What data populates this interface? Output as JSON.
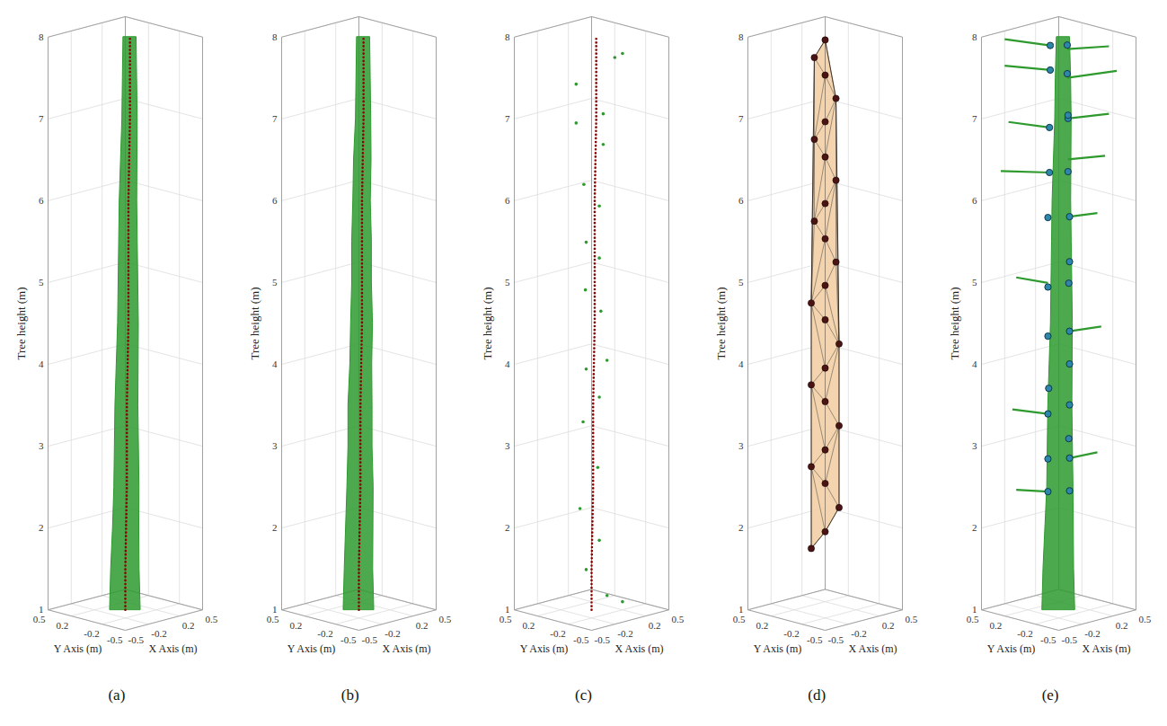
{
  "chart_data": [
    {
      "type": "scatter3d",
      "title": "(a)",
      "xlabel": "X Axis (m)",
      "ylabel": "Y Axis (m)",
      "zlabel": "Tree height (m)",
      "xlim": [
        -0.5,
        0.5
      ],
      "ylim": [
        -0.5,
        0.5
      ],
      "zlim": [
        1,
        8
      ],
      "xticks": [
        -0.5,
        -0.2,
        0.2,
        0.5
      ],
      "yticks": [
        -0.5,
        -0.2,
        0.2,
        0.5
      ],
      "zticks": [
        1,
        2,
        3,
        4,
        5,
        6,
        7,
        8
      ],
      "grid": true,
      "series": [
        {
          "type": "area",
          "color": "#2e9a2e",
          "x": [
            0,
            0,
            0.01,
            0.01,
            0.01,
            0.01,
            0.02,
            0.02,
            0.02,
            0.02,
            0.02,
            0.03,
            0.03,
            0.03,
            0.03
          ],
          "y": [
            0,
            0,
            0,
            -0.01,
            -0.01,
            -0.01,
            -0.01,
            -0.02,
            -0.02,
            -0.02,
            -0.02,
            -0.02,
            -0.03,
            -0.03,
            -0.03
          ],
          "z": [
            1,
            1.5,
            2,
            2.5,
            3,
            3.5,
            4,
            4.5,
            5,
            5.5,
            6,
            6.5,
            7,
            7.5,
            8
          ],
          "radius": [
            0.14,
            0.13,
            0.12,
            0.115,
            0.11,
            0.105,
            0.1,
            0.095,
            0.09,
            0.085,
            0.08,
            0.075,
            0.07,
            0.065,
            0.06
          ]
        },
        {
          "type": "line",
          "line_style": "dotted",
          "color": "#8b0000",
          "x": [
            0,
            0,
            0.01,
            0.01,
            0.01,
            0.01,
            0.02,
            0.02,
            0.02,
            0.02,
            0.02,
            0.03,
            0.03,
            0.03,
            0.03
          ],
          "y": [
            0,
            0,
            0,
            -0.01,
            -0.01,
            -0.01,
            -0.01,
            -0.02,
            -0.02,
            -0.02,
            -0.02,
            -0.02,
            -0.03,
            -0.03,
            -0.03
          ],
          "z": [
            1,
            1.5,
            2,
            2.5,
            3,
            3.5,
            4,
            4.5,
            5,
            5.5,
            6,
            6.5,
            7,
            7.5,
            8
          ]
        }
      ]
    },
    {
      "type": "scatter3d",
      "title": "(b)",
      "xlabel": "X Axis (m)",
      "ylabel": "Y Axis (m)",
      "zlabel": "Tree height (m)",
      "xlim": [
        -0.5,
        0.5
      ],
      "ylim": [
        -0.5,
        0.5
      ],
      "zlim": [
        1,
        8
      ],
      "xticks": [
        -0.5,
        -0.2,
        0.2,
        0.5
      ],
      "yticks": [
        -0.5,
        -0.2,
        0.2,
        0.5
      ],
      "zticks": [
        1,
        2,
        3,
        4,
        5,
        6,
        7,
        8
      ],
      "grid": true,
      "series": [
        {
          "type": "area",
          "color": "#2e9a2e",
          "x": [
            0,
            0,
            0.01,
            0.01,
            0.01,
            0.01,
            0.02,
            0.02,
            0.02,
            0.02,
            0.02,
            0.03,
            0.03,
            0.03,
            0.03
          ],
          "y": [
            0,
            0,
            0,
            -0.01,
            -0.01,
            -0.01,
            -0.01,
            -0.02,
            -0.02,
            -0.02,
            -0.02,
            -0.02,
            -0.03,
            -0.03,
            -0.03
          ],
          "z": [
            1,
            1.5,
            2,
            2.5,
            3,
            3.5,
            4,
            4.5,
            5,
            5.5,
            6,
            6.5,
            7,
            7.5,
            8
          ],
          "radius": [
            0.14,
            0.13,
            0.125,
            0.12,
            0.11,
            0.11,
            0.1,
            0.1,
            0.09,
            0.09,
            0.08,
            0.08,
            0.07,
            0.065,
            0.06
          ]
        },
        {
          "type": "line",
          "line_style": "dotted",
          "color": "#8b0000",
          "x": [
            0,
            0,
            0.01,
            0.01,
            0.01,
            0.01,
            0.02,
            0.02,
            0.02,
            0.02,
            0.02,
            0.03,
            0.03,
            0.03,
            0.03
          ],
          "y": [
            0,
            0,
            0,
            -0.01,
            -0.01,
            -0.01,
            -0.01,
            -0.02,
            -0.02,
            -0.02,
            -0.02,
            -0.02,
            -0.03,
            -0.03,
            -0.03
          ],
          "z": [
            1,
            1.5,
            2,
            2.5,
            3,
            3.5,
            4,
            4.5,
            5,
            5.5,
            6,
            6.5,
            7,
            7.5,
            8
          ]
        }
      ]
    },
    {
      "type": "scatter3d",
      "title": "(c)",
      "xlabel": "X Axis (m)",
      "ylabel": "Y Axis (m)",
      "zlabel": "Tree height (m)",
      "xlim": [
        -0.5,
        0.5
      ],
      "ylim": [
        -0.5,
        0.5
      ],
      "zlim": [
        1,
        8
      ],
      "xticks": [
        -0.5,
        -0.2,
        0.2,
        0.5
      ],
      "yticks": [
        -0.5,
        -0.2,
        0.2,
        0.5
      ],
      "zticks": [
        1,
        2,
        3,
        4,
        5,
        6,
        7,
        8
      ],
      "grid": true,
      "series": [
        {
          "type": "scatter",
          "marker": "circle",
          "color": "#2e9a2e",
          "x": [
            0.05,
            0.3,
            -0.15,
            0.1,
            -0.1,
            0.05,
            -0.05,
            0.02,
            -0.05,
            0.05,
            -0.02,
            0.06,
            0.1,
            -0.05,
            0.05,
            -0.06,
            0.02,
            -0.1,
            0.05,
            -0.05,
            0.15,
            0.2
          ],
          "y": [
            -0.25,
            -0.1,
            0.05,
            -0.05,
            0.1,
            -0.1,
            0.05,
            -0.08,
            0.02,
            -0.05,
            0.06,
            -0.06,
            -0.1,
            0.02,
            -0.05,
            0.05,
            -0.06,
            0.05,
            -0.05,
            0.02,
            -0.05,
            -0.2
          ],
          "z": [
            7.8,
            7.75,
            7.45,
            7.05,
            6.95,
            6.7,
            6.2,
            5.95,
            5.5,
            5.3,
            4.9,
            4.65,
            4.05,
            3.95,
            3.6,
            3.3,
            2.75,
            2.25,
            1.85,
            1.5,
            1.15,
            1.1
          ]
        },
        {
          "type": "line",
          "line_style": "dotted",
          "color": "#8b0000",
          "x": [
            0,
            0,
            0.01,
            0.01,
            0.01,
            0.01,
            0.02,
            0.02,
            0.02,
            0.02,
            0.02,
            0.03,
            0.03,
            0.03,
            0.03
          ],
          "y": [
            0,
            0,
            0,
            -0.01,
            -0.01,
            -0.01,
            -0.01,
            -0.02,
            -0.02,
            -0.02,
            -0.02,
            -0.02,
            -0.03,
            -0.03,
            -0.03
          ],
          "z": [
            1,
            1.5,
            2,
            2.5,
            3,
            3.5,
            4,
            4.5,
            5,
            5.5,
            6,
            6.5,
            7,
            7.5,
            8
          ]
        }
      ]
    },
    {
      "type": "scatter3d",
      "title": "(d)",
      "xlabel": "X Axis (m)",
      "ylabel": "Y Axis (m)",
      "zlabel": "Tree height (m)",
      "xlim": [
        -0.5,
        0.5
      ],
      "ylim": [
        -0.5,
        0.5
      ],
      "zlim": [
        1,
        8
      ],
      "xticks": [
        -0.5,
        -0.2,
        0.2,
        0.5
      ],
      "yticks": [
        -0.5,
        -0.2,
        0.2,
        0.5
      ],
      "zticks": [
        1,
        2,
        3,
        4,
        5,
        6,
        7,
        8
      ],
      "grid": true,
      "series": [
        {
          "type": "mesh",
          "marker": "circle",
          "color": "#4a1414",
          "x": [
            -0.09,
            -0.09,
            0.09,
            0.09,
            -0.09,
            -0.09,
            0.09,
            0.09,
            -0.09,
            -0.09,
            0.09,
            0.09,
            -0.09,
            -0.07,
            0.07,
            0.07,
            -0.07,
            -0.07,
            0.07,
            0.07,
            -0.07,
            -0.07,
            0.07,
            0.07,
            -0.07,
            -0.07
          ],
          "y": [
            0.09,
            -0.09,
            -0.09,
            0.09,
            0.09,
            -0.09,
            -0.09,
            0.09,
            0.09,
            -0.09,
            -0.09,
            0.09,
            0.09,
            -0.07,
            -0.07,
            0.07,
            0.07,
            -0.07,
            -0.07,
            0.07,
            0.07,
            -0.07,
            -0.07,
            0.07,
            0.07,
            -0.07
          ],
          "z": [
            1.75,
            2,
            2.25,
            2.5,
            2.75,
            3,
            3.25,
            3.5,
            3.75,
            4,
            4.25,
            4.5,
            4.75,
            5,
            5.25,
            5.5,
            5.75,
            6,
            6.25,
            6.5,
            6.75,
            7,
            7.25,
            7.5,
            7.75,
            8
          ]
        }
      ]
    },
    {
      "type": "scatter3d",
      "title": "(e)",
      "xlabel": "X Axis (m)",
      "ylabel": "Y Axis (m)",
      "zlabel": "Tree height (m)",
      "xlim": [
        -0.5,
        0.5
      ],
      "ylim": [
        -0.5,
        0.5
      ],
      "zlim": [
        1,
        8
      ],
      "xticks": [
        -0.5,
        -0.2,
        0.2,
        0.5
      ],
      "yticks": [
        -0.5,
        -0.2,
        0.2,
        0.5
      ],
      "zticks": [
        1,
        2,
        3,
        4,
        5,
        6,
        7,
        8
      ],
      "grid": true,
      "series": [
        {
          "type": "segments",
          "color": "#2e9a2e",
          "x1": [
            -0.08,
            0.08,
            -0.08,
            0.08,
            -0.08,
            0.08,
            -0.07,
            0.07,
            -0.07,
            0.07,
            -0.06,
            0.06,
            -0.06,
            0.06
          ],
          "y1": [
            0.06,
            -0.06,
            0.06,
            -0.06,
            0.06,
            -0.06,
            0.05,
            -0.05,
            0.05,
            -0.05,
            0.05,
            -0.05,
            0.05,
            -0.05
          ],
          "z1": [
            2.45,
            2.85,
            3.4,
            4.4,
            5.0,
            5.8,
            6.35,
            6.5,
            6.9,
            7.0,
            7.6,
            7.5,
            7.9,
            7.85
          ],
          "x2": [
            -0.3,
            0.3,
            -0.3,
            0.3,
            -0.25,
            0.25,
            -0.35,
            0.3,
            -0.3,
            0.35,
            -0.35,
            0.35,
            -0.3,
            0.3
          ],
          "y2": [
            0.25,
            -0.2,
            0.3,
            -0.25,
            0.3,
            -0.25,
            0.4,
            -0.3,
            0.35,
            -0.3,
            0.35,
            -0.4,
            0.4,
            -0.35
          ],
          "z2": [
            2.48,
            2.9,
            3.45,
            4.45,
            5.05,
            5.85,
            6.35,
            6.55,
            6.95,
            7.05,
            7.65,
            7.6,
            7.95,
            7.9
          ]
        },
        {
          "type": "area",
          "color": "#2e9a2e",
          "x": [
            0,
            0,
            0.01,
            0.01,
            0.01,
            0.01,
            0.02,
            0.02,
            0.02,
            0.02,
            0.02,
            0.03,
            0.03,
            0.03,
            0.03
          ],
          "y": [
            0,
            0,
            0,
            -0.01,
            -0.01,
            -0.01,
            -0.01,
            -0.02,
            -0.02,
            -0.02,
            -0.02,
            -0.02,
            -0.03,
            -0.03,
            -0.03
          ],
          "z": [
            1,
            1.5,
            2,
            2.5,
            3,
            3.5,
            4,
            4.5,
            5,
            5.5,
            6,
            6.5,
            7,
            7.5,
            8
          ],
          "radius": [
            0.15,
            0.14,
            0.13,
            0.12,
            0.115,
            0.11,
            0.105,
            0.1,
            0.095,
            0.09,
            0.085,
            0.08,
            0.075,
            0.07,
            0.06
          ]
        },
        {
          "type": "scatter",
          "marker": "circle",
          "color": "#2e86ab",
          "x": [
            -0.08,
            0.08,
            -0.08,
            0.08,
            0.05,
            -0.08,
            0.08,
            -0.05,
            0.08,
            -0.08,
            0.08,
            -0.08,
            0.05,
            0.08,
            -0.08,
            0.08,
            -0.07,
            0.07,
            -0.07,
            0.07,
            0.05,
            -0.06,
            0.06,
            -0.06,
            0.06
          ],
          "y": [
            0.06,
            -0.06,
            0.06,
            -0.06,
            -0.08,
            0.06,
            -0.06,
            0.08,
            -0.06,
            0.06,
            -0.06,
            0.06,
            -0.08,
            -0.06,
            0.06,
            -0.06,
            0.05,
            -0.05,
            0.05,
            -0.05,
            -0.07,
            0.05,
            -0.05,
            0.05,
            -0.05
          ],
          "z": [
            2.45,
            2.45,
            2.85,
            2.85,
            3.1,
            3.4,
            3.5,
            3.7,
            4.0,
            4.35,
            4.4,
            4.95,
            5.0,
            5.25,
            5.8,
            5.8,
            6.35,
            6.35,
            6.9,
            7.0,
            7.05,
            7.6,
            7.55,
            7.9,
            7.9
          ]
        }
      ]
    }
  ]
}
